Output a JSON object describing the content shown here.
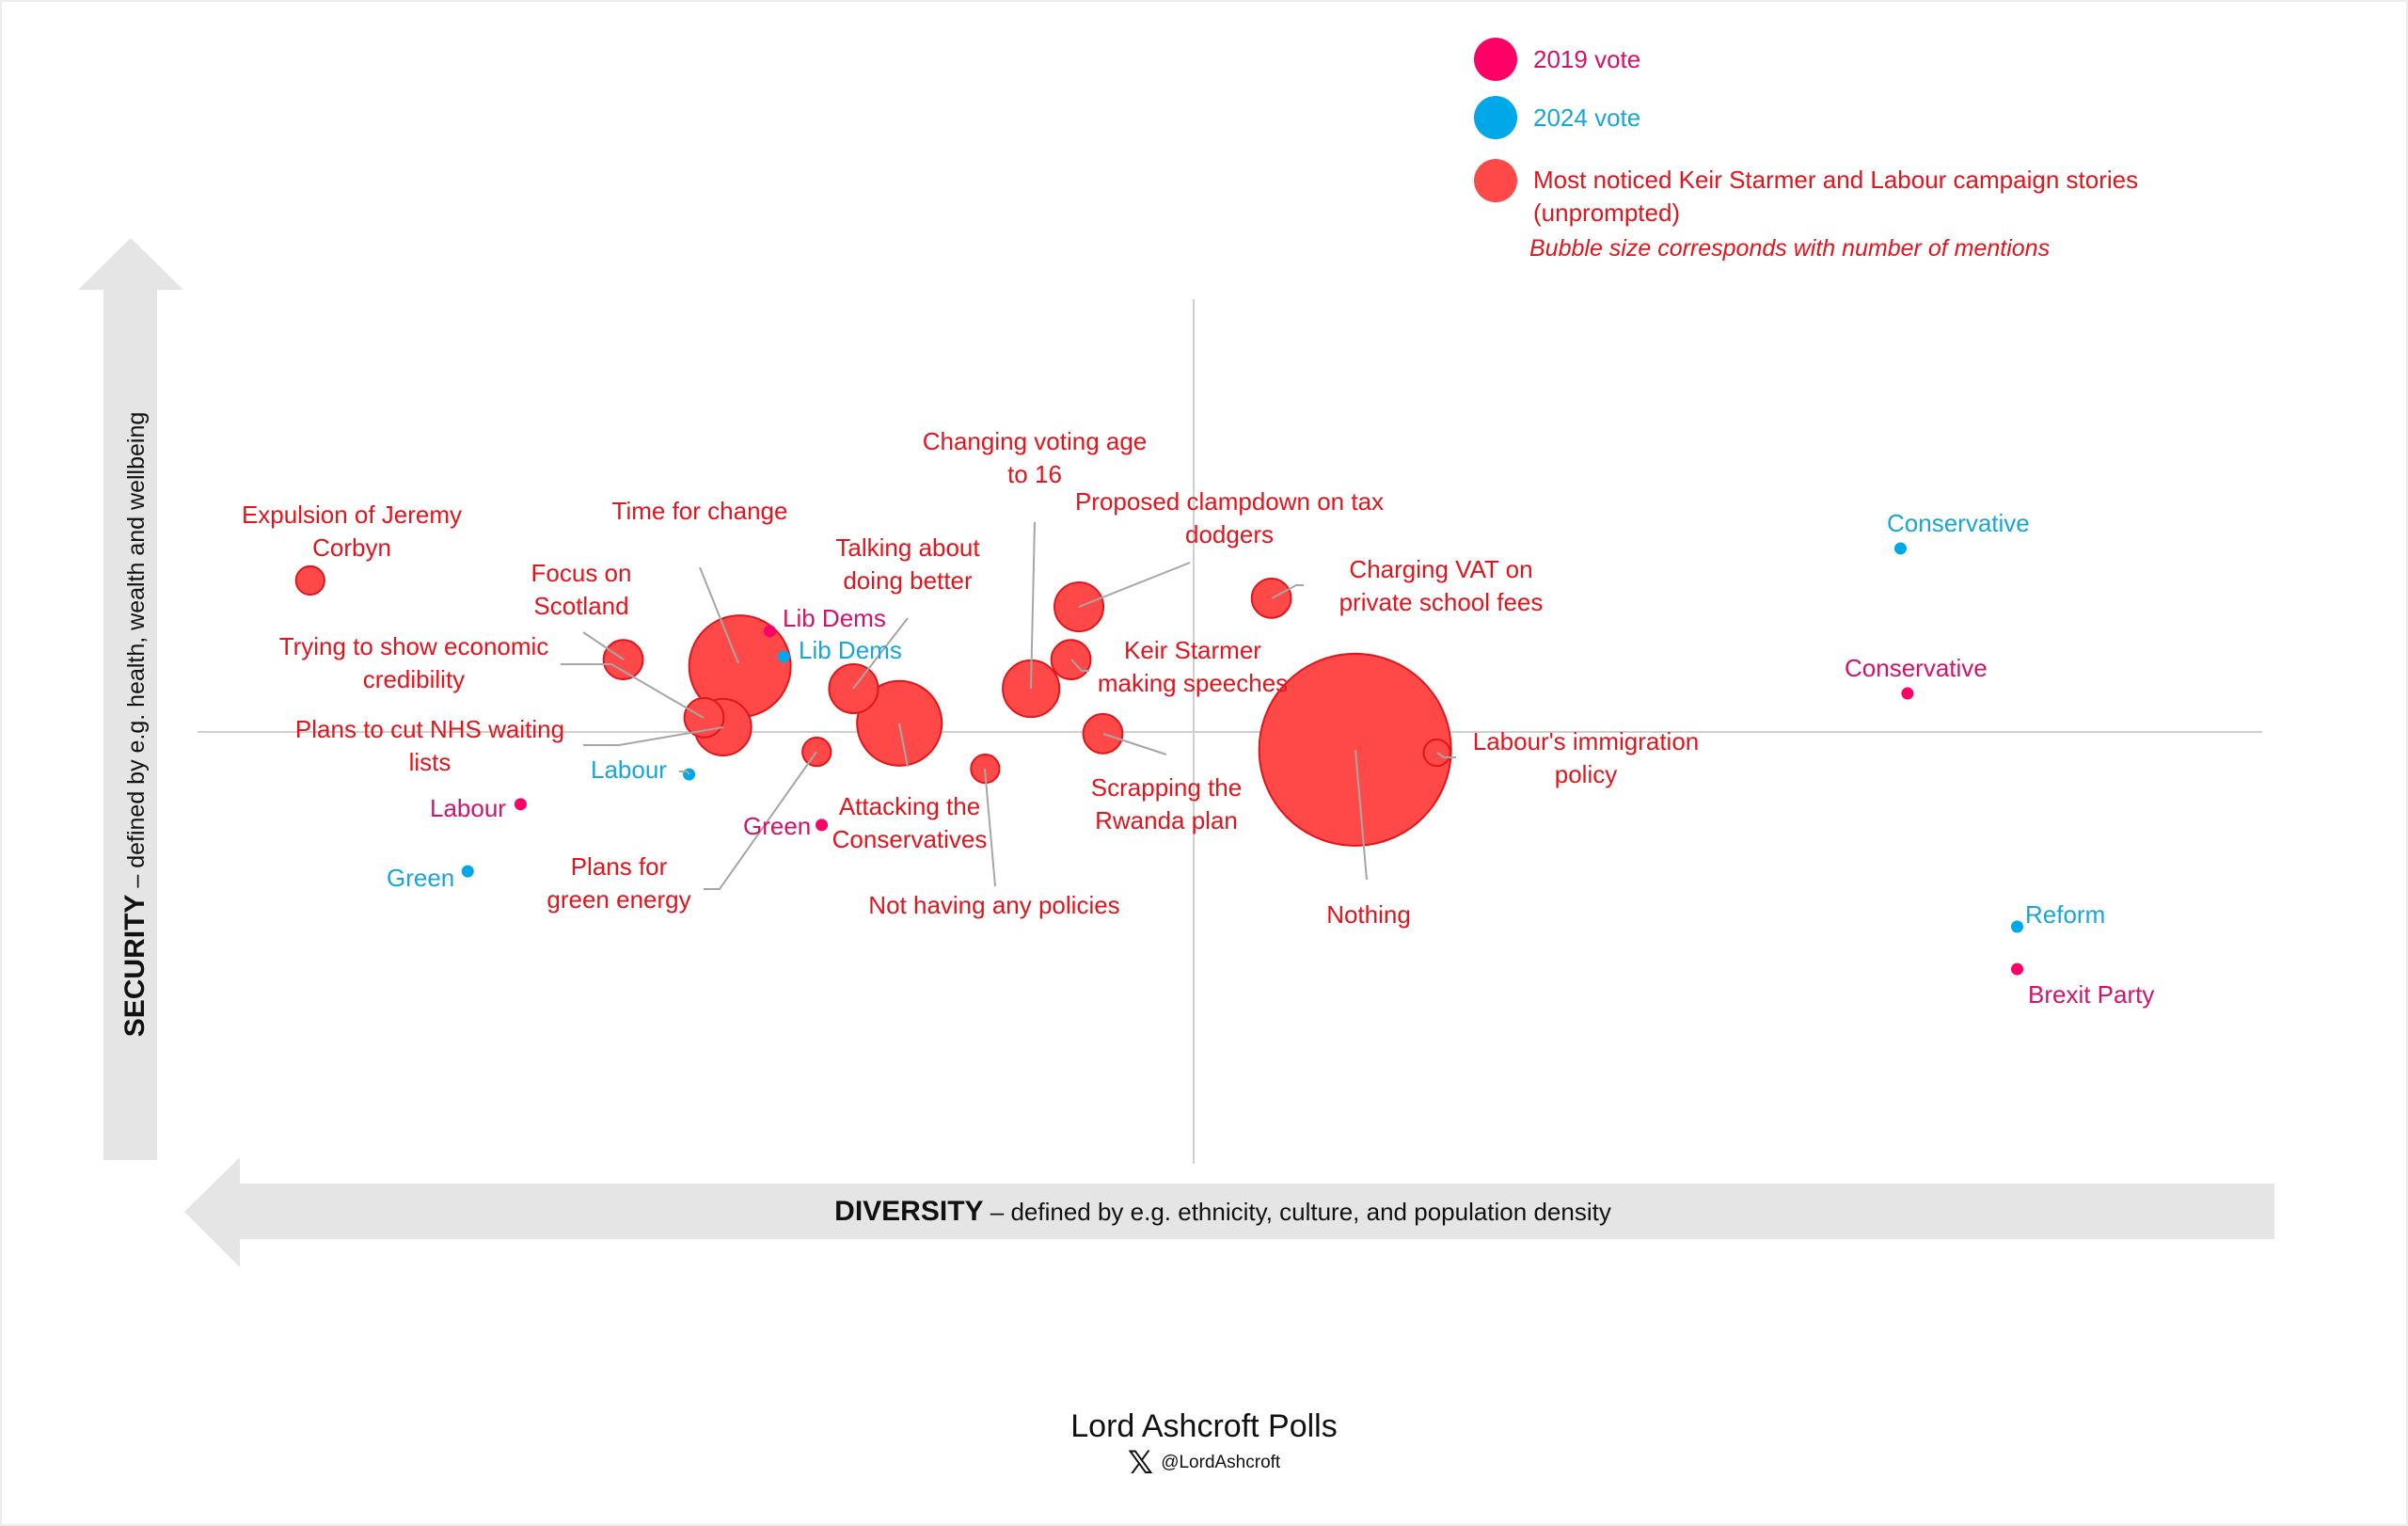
{
  "legend": {
    "items": [
      {
        "key": "2019",
        "label": "2019 vote",
        "color": "#ff0066",
        "text_color": "#d4126a"
      },
      {
        "key": "2024",
        "label": "2024 vote",
        "color": "#00a8ea",
        "text_color": "#18a6d8"
      },
      {
        "key": "stories",
        "label": "Most noticed Keir Starmer and Labour campaign stories\n(unprompted)",
        "color": "#ff4848",
        "text_color": "#e3141b"
      }
    ],
    "note": "Bubble size corresponds with number of mentions"
  },
  "axes": {
    "y_bold": "SECURITY",
    "y_rest": " – defined by e.g. health, wealth and wellbeing",
    "x_bold": "DIVERSITY",
    "x_rest": " – defined by e.g. ethnicity, culture, and population density"
  },
  "footer": {
    "title": "Lord Ashcroft Polls",
    "handle": "@LordAshcroft",
    "icon": "x-logo-icon"
  },
  "chart_data": {
    "type": "scatter",
    "title": "",
    "xlabel": "DIVERSITY – defined by e.g. ethnicity, culture, and population density",
    "ylabel": "SECURITY – defined by e.g. health, wealth and wellbeing",
    "xlim": [
      -100,
      107
    ],
    "ylim": [
      -100,
      100
    ],
    "grid": false,
    "quadrant_lines": true,
    "legend_position": "top-right",
    "colors": {
      "2019": "#ff0066",
      "2024": "#00a8ea",
      "stories": "#ff4848"
    },
    "stories": [
      {
        "label": "Expulsion of Jeremy\nCorbyn",
        "x": -88.7,
        "y": 35.0,
        "size": 2.2
      },
      {
        "label": "Time for change",
        "x": -45.6,
        "y": 15.2,
        "size": 28
      },
      {
        "label": "Focus on\nScotland",
        "x": -57.3,
        "y": 16.7,
        "size": 4.2
      },
      {
        "label": "Trying to show economic\ncredibility",
        "x": -49.2,
        "y": 3.3,
        "size": 4.2
      },
      {
        "label": "Plans to cut NHS waiting\nlists",
        "x": -47.3,
        "y": 1.1,
        "size": 8.7
      },
      {
        "label": "Talking about\ndoing better",
        "x": -34.2,
        "y": 10.0,
        "size": 6.5
      },
      {
        "label": "Attacking the\nConservatives",
        "x": -29.6,
        "y": 2.0,
        "size": 19.5
      },
      {
        "label": "Plans for\ngreen energy",
        "x": -37.9,
        "y": -4.6,
        "size": 2.2
      },
      {
        "label": "Not having any policies",
        "x": -21.0,
        "y": -8.5,
        "size": 2.2
      },
      {
        "label": "Changing voting age\nto 16",
        "x": -16.4,
        "y": 10.0,
        "size": 8.7
      },
      {
        "label": "Proposed clampdown on tax\ndodgers",
        "x": -11.6,
        "y": 28.9,
        "size": 6.5
      },
      {
        "label": "Keir Starmer\nmaking speeches",
        "x": -12.4,
        "y": 16.7,
        "size": 4.2
      },
      {
        "label": "Scrapping the\nRwanda plan",
        "x": -9.2,
        "y": -0.4,
        "size": 4.2
      },
      {
        "label": "Charging VAT on\nprivate school fees",
        "x": 7.7,
        "y": 30.9,
        "size": 4.2
      },
      {
        "label": "Nothing",
        "x": 16.1,
        "y": -4.1,
        "size": 100
      },
      {
        "label": "Labour's immigration\npolicy",
        "x": 24.3,
        "y": -4.8,
        "size": 1.9
      }
    ],
    "parties": [
      {
        "label": "Lib Dems",
        "year": "2019",
        "x": -42.6,
        "y": 23.3
      },
      {
        "label": "Lib Dems",
        "year": "2024",
        "x": -41.2,
        "y": 17.4
      },
      {
        "label": "Labour",
        "year": "2024",
        "x": -50.7,
        "y": -9.8
      },
      {
        "label": "Labour",
        "year": "2019",
        "x": -67.6,
        "y": -16.7
      },
      {
        "label": "Green",
        "year": "2024",
        "x": -72.9,
        "y": -32.2
      },
      {
        "label": "Green",
        "year": "2019",
        "x": -37.4,
        "y": -21.5
      },
      {
        "label": "Conservative",
        "year": "2024",
        "x": 70.8,
        "y": 42.4
      },
      {
        "label": "Conservative",
        "year": "2019",
        "x": 71.5,
        "y": 8.9
      },
      {
        "label": "Reform",
        "year": "2024",
        "x": 82.5,
        "y": -45.0
      },
      {
        "label": "Brexit Party",
        "year": "2019",
        "x": 82.5,
        "y": -54.8
      }
    ]
  }
}
